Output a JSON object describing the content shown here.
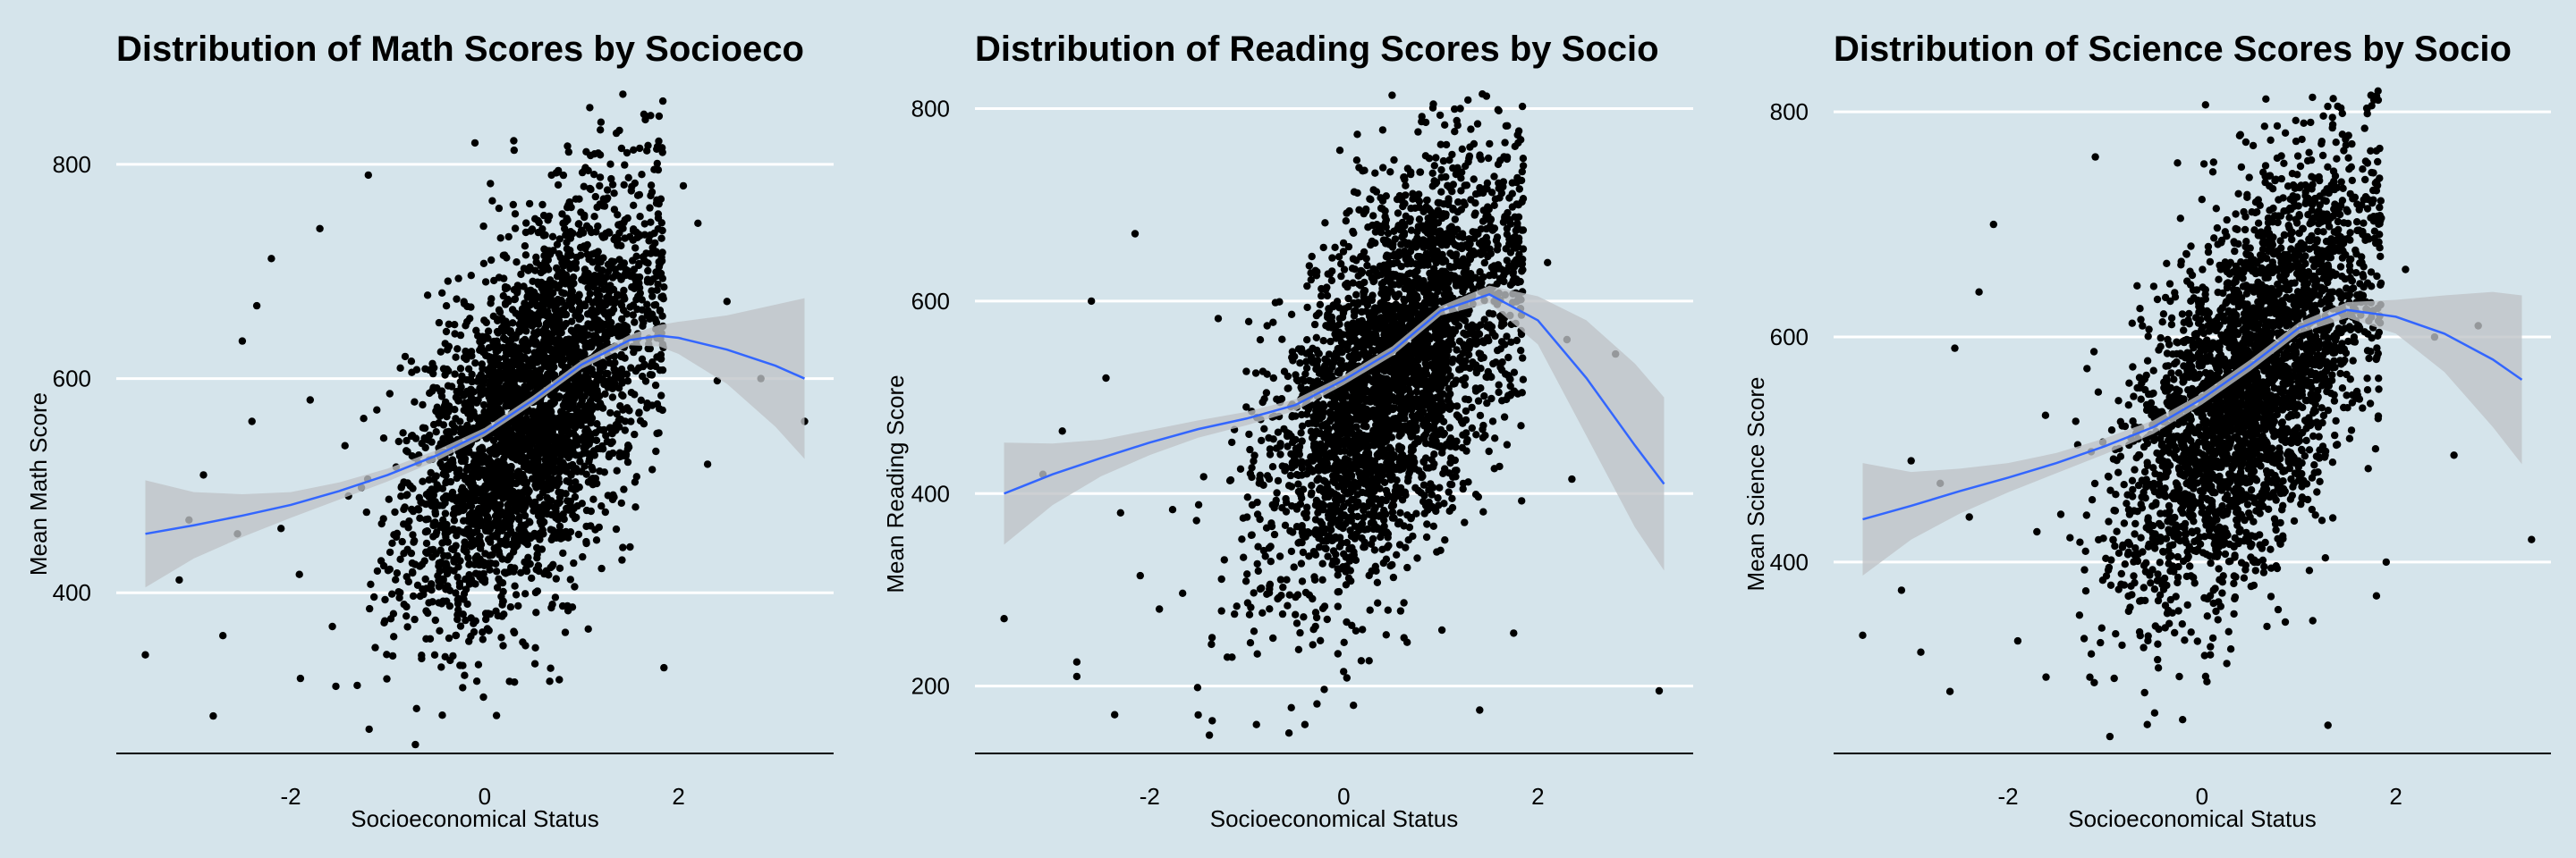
{
  "colors": {
    "background": "#d5e4eb",
    "grid": "#ffffff",
    "points": "#000000",
    "smooth_line": "#3366ff",
    "confidence_band": "#bfc3c6"
  },
  "chart_data": [
    {
      "type": "scatter",
      "title": "Distribution of Math Scores by Socioeco",
      "xlabel": "Socioeconomical Status",
      "ylabel": "Mean Math Score",
      "xlim": [
        -3.8,
        3.6
      ],
      "ylim": [
        250,
        870
      ],
      "xticks": [
        {
          "value": -2,
          "label": "-2"
        },
        {
          "value": 0,
          "label": "0"
        },
        {
          "value": 2,
          "label": "2"
        }
      ],
      "yticks": [
        {
          "value": 400,
          "label": "400"
        },
        {
          "value": 600,
          "label": "600"
        },
        {
          "value": 800,
          "label": "800"
        }
      ],
      "grid": true,
      "cloud": {
        "n": 3200,
        "center_x": 0.5,
        "center_y": 570,
        "sd_x": 0.65,
        "sd_y": 95,
        "correlation": 0.55
      },
      "points": [
        [
          -3.5,
          342
        ],
        [
          -3.15,
          412
        ],
        [
          -3.05,
          468
        ],
        [
          -2.8,
          285
        ],
        [
          -2.7,
          360
        ],
        [
          -2.55,
          455
        ],
        [
          -2.4,
          560
        ],
        [
          -2.35,
          668
        ],
        [
          -2.2,
          712
        ],
        [
          -2.9,
          510
        ],
        [
          -2.5,
          635
        ],
        [
          -2.1,
          460
        ],
        [
          -1.9,
          320
        ],
        [
          -1.8,
          580
        ],
        [
          -1.7,
          740
        ],
        [
          -1.2,
          790
        ],
        [
          1.8,
          845
        ],
        [
          1.6,
          815
        ],
        [
          2.05,
          780
        ],
        [
          2.2,
          745
        ],
        [
          2.3,
          520
        ],
        [
          2.4,
          598
        ],
        [
          2.5,
          672
        ],
        [
          2.85,
          600
        ],
        [
          3.3,
          560
        ],
        [
          1.85,
          330
        ],
        [
          0.3,
          822
        ],
        [
          -0.1,
          820
        ]
      ],
      "smooth": [
        [
          -3.5,
          455
        ],
        [
          -3,
          463
        ],
        [
          -2.5,
          472
        ],
        [
          -2,
          482
        ],
        [
          -1.5,
          495
        ],
        [
          -1,
          510
        ],
        [
          -0.5,
          528
        ],
        [
          0,
          550
        ],
        [
          0.5,
          580
        ],
        [
          1,
          613
        ],
        [
          1.5,
          636
        ],
        [
          1.8,
          640
        ],
        [
          2,
          638
        ],
        [
          2.5,
          627
        ],
        [
          3,
          612
        ],
        [
          3.3,
          600
        ]
      ],
      "band": [
        [
          -3.5,
          405,
          505
        ],
        [
          -3,
          432,
          494
        ],
        [
          -2.5,
          452,
          492
        ],
        [
          -2,
          470,
          494
        ],
        [
          -1.5,
          487,
          503
        ],
        [
          -1,
          504,
          516
        ],
        [
          -0.5,
          523,
          533
        ],
        [
          0,
          546,
          554
        ],
        [
          0.5,
          576,
          584
        ],
        [
          1,
          609,
          617
        ],
        [
          1.5,
          631,
          641
        ],
        [
          1.8,
          630,
          650
        ],
        [
          2,
          623,
          653
        ],
        [
          2.5,
          595,
          659
        ],
        [
          3,
          555,
          669
        ],
        [
          3.3,
          525,
          675
        ]
      ]
    },
    {
      "type": "scatter",
      "title": "Distribution of Reading Scores by Socio",
      "xlabel": "Socioeconomical Status",
      "ylabel": "Mean Reading Score",
      "xlim": [
        -3.8,
        3.6
      ],
      "ylim": [
        130,
        820
      ],
      "xticks": [
        {
          "value": -2,
          "label": "-2"
        },
        {
          "value": 0,
          "label": "0"
        },
        {
          "value": 2,
          "label": "2"
        }
      ],
      "yticks": [
        {
          "value": 200,
          "label": "200"
        },
        {
          "value": 400,
          "label": "400"
        },
        {
          "value": 600,
          "label": "600"
        },
        {
          "value": 800,
          "label": "800"
        }
      ],
      "grid": true,
      "cloud": {
        "n": 3200,
        "center_x": 0.5,
        "center_y": 520,
        "sd_x": 0.65,
        "sd_y": 110,
        "correlation": 0.55
      },
      "points": [
        [
          -3.5,
          270
        ],
        [
          -2.75,
          210
        ],
        [
          -2.75,
          225
        ],
        [
          -3.1,
          420
        ],
        [
          -2.6,
          600
        ],
        [
          -2.45,
          520
        ],
        [
          -2.15,
          670
        ],
        [
          -1.9,
          280
        ],
        [
          -2.9,
          465
        ],
        [
          -2.3,
          380
        ],
        [
          -1.5,
          170
        ],
        [
          -0.9,
          160
        ],
        [
          -0.4,
          160
        ],
        [
          1.2,
          800
        ],
        [
          1.3,
          760
        ],
        [
          1.8,
          700
        ],
        [
          2.1,
          640
        ],
        [
          2.3,
          560
        ],
        [
          2.35,
          415
        ],
        [
          2.8,
          545
        ],
        [
          3.25,
          195
        ],
        [
          1.4,
          175
        ],
        [
          1.75,
          255
        ],
        [
          0.1,
          180
        ],
        [
          -1.2,
          230
        ]
      ],
      "smooth": [
        [
          -3.5,
          400
        ],
        [
          -3,
          420
        ],
        [
          -2.5,
          437
        ],
        [
          -2,
          453
        ],
        [
          -1.5,
          467
        ],
        [
          -1,
          478
        ],
        [
          -0.5,
          492
        ],
        [
          0,
          518
        ],
        [
          0.5,
          548
        ],
        [
          1,
          590
        ],
        [
          1.5,
          607
        ],
        [
          2,
          580
        ],
        [
          2.5,
          520
        ],
        [
          3,
          450
        ],
        [
          3.3,
          410
        ]
      ],
      "band": [
        [
          -3.5,
          347,
          453
        ],
        [
          -3,
          388,
          452
        ],
        [
          -2.5,
          418,
          456
        ],
        [
          -2,
          440,
          466
        ],
        [
          -1.5,
          458,
          476
        ],
        [
          -1,
          471,
          485
        ],
        [
          -0.5,
          486,
          498
        ],
        [
          0,
          513,
          523
        ],
        [
          0.5,
          543,
          553
        ],
        [
          1,
          585,
          595
        ],
        [
          1.5,
          598,
          616
        ],
        [
          2,
          555,
          605
        ],
        [
          2.5,
          460,
          580
        ],
        [
          3,
          365,
          535
        ],
        [
          3.3,
          320,
          500
        ]
      ]
    },
    {
      "type": "scatter",
      "title": "Distribution of Science Scores by Socio",
      "xlabel": "Socioeconomical Status",
      "ylabel": "Mean Science Score",
      "xlim": [
        -3.8,
        3.6
      ],
      "ylim": [
        230,
        820
      ],
      "xticks": [
        {
          "value": -2,
          "label": "-2"
        },
        {
          "value": 0,
          "label": "0"
        },
        {
          "value": 2,
          "label": "2"
        }
      ],
      "yticks": [
        {
          "value": 400,
          "label": "400"
        },
        {
          "value": 600,
          "label": "600"
        },
        {
          "value": 800,
          "label": "800"
        }
      ],
      "grid": true,
      "cloud": {
        "n": 3200,
        "center_x": 0.5,
        "center_y": 560,
        "sd_x": 0.65,
        "sd_y": 95,
        "correlation": 0.55
      },
      "points": [
        [
          -3.5,
          335
        ],
        [
          -3.1,
          375
        ],
        [
          -2.9,
          320
        ],
        [
          -2.6,
          285
        ],
        [
          -2.7,
          470
        ],
        [
          -2.55,
          590
        ],
        [
          -2.3,
          640
        ],
        [
          -2.15,
          700
        ],
        [
          -1.9,
          330
        ],
        [
          -2.4,
          440
        ],
        [
          -3.0,
          490
        ],
        [
          -0.95,
          245
        ],
        [
          -0.2,
          260
        ],
        [
          1.05,
          790
        ],
        [
          1.4,
          805
        ],
        [
          1.8,
          730
        ],
        [
          2.1,
          660
        ],
        [
          2.4,
          600
        ],
        [
          2.6,
          495
        ],
        [
          2.85,
          610
        ],
        [
          3.4,
          420
        ],
        [
          1.9,
          400
        ],
        [
          1.8,
          370
        ],
        [
          1.3,
          255
        ],
        [
          -1.1,
          760
        ]
      ],
      "smooth": [
        [
          -3.5,
          438
        ],
        [
          -3,
          450
        ],
        [
          -2.5,
          463
        ],
        [
          -2,
          475
        ],
        [
          -1.5,
          488
        ],
        [
          -1,
          503
        ],
        [
          -0.5,
          520
        ],
        [
          0,
          545
        ],
        [
          0.5,
          575
        ],
        [
          1,
          608
        ],
        [
          1.5,
          624
        ],
        [
          2,
          618
        ],
        [
          2.5,
          603
        ],
        [
          3,
          580
        ],
        [
          3.3,
          562
        ]
      ],
      "band": [
        [
          -3.5,
          388,
          488
        ],
        [
          -3,
          420,
          480
        ],
        [
          -2.5,
          443,
          483
        ],
        [
          -2,
          462,
          488
        ],
        [
          -1.5,
          479,
          497
        ],
        [
          -1,
          496,
          510
        ],
        [
          -0.5,
          514,
          526
        ],
        [
          0,
          540,
          550
        ],
        [
          0.5,
          570,
          580
        ],
        [
          1,
          603,
          613
        ],
        [
          1.5,
          617,
          631
        ],
        [
          2,
          603,
          633
        ],
        [
          2.5,
          569,
          637
        ],
        [
          3,
          520,
          640
        ],
        [
          3.3,
          487,
          637
        ]
      ]
    }
  ]
}
